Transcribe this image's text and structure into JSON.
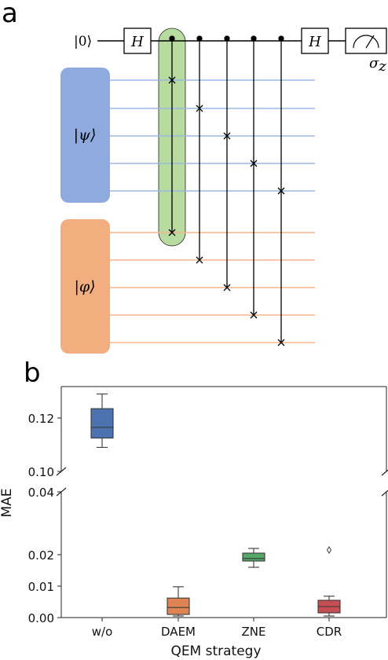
{
  "panel_a": {
    "letter": "a",
    "ancilla_label": "|0⟩",
    "gate_labels": [
      "H",
      "H"
    ],
    "measure_label": "σ_z",
    "psi_label": "|ψ⟩",
    "phi_label": "|φ⟩",
    "colors": {
      "psi": "#8eaadf",
      "phi": "#f3ae80",
      "highlight": "#b8dba0",
      "psi_wire": "#9ab8e0",
      "phi_wire": "#f5b58c"
    },
    "controlled_swaps": [
      {
        "psi_qubit": 1,
        "phi_qubit": 1,
        "highlighted": true
      },
      {
        "psi_qubit": 2,
        "phi_qubit": 2,
        "highlighted": false
      },
      {
        "psi_qubit": 3,
        "phi_qubit": 3,
        "highlighted": false
      },
      {
        "psi_qubit": 4,
        "phi_qubit": 4,
        "highlighted": false
      },
      {
        "psi_qubit": 5,
        "phi_qubit": 5,
        "highlighted": false
      }
    ]
  },
  "chart_data": {
    "panel_letter": "b",
    "type": "box",
    "xlabel": "QEM strategy",
    "ylabel": "MAE",
    "categories": [
      "w/o",
      "DAEM",
      "ZNE",
      "CDR"
    ],
    "broken_y_axis": true,
    "upper_ylim": [
      0.1,
      0.132
    ],
    "lower_ylim": [
      0.0,
      0.04
    ],
    "upper_yticks": [
      "0.12",
      "0.10"
    ],
    "lower_yticks": [
      "0.04",
      "0.02",
      "0.01",
      "0.00"
    ],
    "grid": false,
    "boxes": [
      {
        "category": "w/o",
        "whisker_low": 0.109,
        "q1": 0.1125,
        "median": 0.1165,
        "q3": 0.1235,
        "whisker_high": 0.129,
        "outliers": [],
        "color": "#4c72b0"
      },
      {
        "category": "DAEM",
        "whisker_low": 0.0005,
        "q1": 0.001,
        "median": 0.0032,
        "q3": 0.0062,
        "whisker_high": 0.0098,
        "outliers": [],
        "color": "#dd8452"
      },
      {
        "category": "ZNE",
        "whisker_low": 0.016,
        "q1": 0.018,
        "median": 0.0188,
        "q3": 0.0205,
        "whisker_high": 0.022,
        "outliers": [],
        "color": "#55a868"
      },
      {
        "category": "CDR",
        "whisker_low": 0.0005,
        "q1": 0.0015,
        "median": 0.0035,
        "q3": 0.0055,
        "whisker_high": 0.0068,
        "outliers": [
          0.0215
        ],
        "color": "#c44e52"
      }
    ]
  }
}
